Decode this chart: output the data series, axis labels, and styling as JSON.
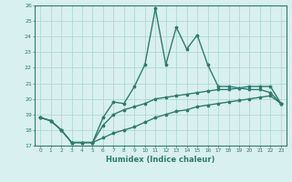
{
  "xlabel": "Humidex (Indice chaleur)",
  "x_values": [
    0,
    1,
    2,
    3,
    4,
    5,
    6,
    7,
    8,
    9,
    10,
    11,
    12,
    13,
    14,
    15,
    16,
    17,
    18,
    19,
    20,
    21,
    22,
    23
  ],
  "line1": [
    18.8,
    18.6,
    18.0,
    17.2,
    17.2,
    17.2,
    18.8,
    19.8,
    19.7,
    20.8,
    22.2,
    25.8,
    22.2,
    24.6,
    23.2,
    24.1,
    22.2,
    20.8,
    20.8,
    20.7,
    20.6,
    20.6,
    20.4,
    19.7
  ],
  "line2": [
    18.8,
    18.6,
    18.0,
    17.2,
    17.2,
    17.2,
    18.3,
    19.0,
    19.3,
    19.5,
    19.7,
    20.0,
    20.1,
    20.2,
    20.3,
    20.4,
    20.5,
    20.6,
    20.6,
    20.7,
    20.8,
    20.8,
    20.8,
    19.7
  ],
  "line3": [
    18.8,
    18.6,
    18.0,
    17.2,
    17.2,
    17.2,
    17.5,
    17.8,
    18.0,
    18.2,
    18.5,
    18.8,
    19.0,
    19.2,
    19.3,
    19.5,
    19.6,
    19.7,
    19.8,
    19.9,
    20.0,
    20.1,
    20.2,
    19.7
  ],
  "line_color": "#2e7d6e",
  "bg_color": "#d8f0ef",
  "grid_color": "#a8d4d0",
  "ylim": [
    17,
    26
  ],
  "yticks": [
    17,
    18,
    19,
    20,
    21,
    22,
    23,
    24,
    25,
    26
  ],
  "xticks": [
    0,
    1,
    2,
    3,
    4,
    5,
    6,
    7,
    8,
    9,
    10,
    11,
    12,
    13,
    14,
    15,
    16,
    17,
    18,
    19,
    20,
    21,
    22,
    23
  ],
  "marker": "*",
  "linewidth": 1.0
}
